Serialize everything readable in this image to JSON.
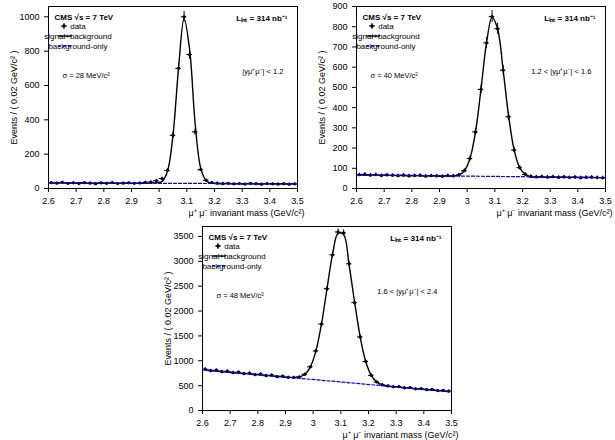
{
  "chart_data": [
    {
      "type": "scatter",
      "annotations": [
        "CMS √s = 7 TeV",
        "Lᵢₙₜ = 314 nb⁻¹",
        "|yμ⁺μ⁻| < 1.2",
        "σ = 28 MeV/c²"
      ],
      "x_label": "μ⁺ μ⁻ invariant mass (GeV/c²)",
      "y_label": "Events / ( 0.02 GeV/c² )",
      "xlim": [
        2.6,
        3.5
      ],
      "ylim": [
        0,
        1060
      ],
      "xticks": [
        2.6,
        2.7,
        2.8,
        2.9,
        3,
        3.1,
        3.2,
        3.3,
        3.4,
        3.5
      ],
      "yticks": [
        0,
        200,
        400,
        600,
        800,
        1000
      ],
      "grid": false,
      "legend": "top-left",
      "x": [
        2.61,
        2.63,
        2.65,
        2.67,
        2.69,
        2.71,
        2.73,
        2.75,
        2.77,
        2.79,
        2.81,
        2.83,
        2.85,
        2.87,
        2.89,
        2.91,
        2.93,
        2.95,
        2.97,
        2.99,
        3.01,
        3.03,
        3.05,
        3.07,
        3.09,
        3.11,
        3.13,
        3.15,
        3.17,
        3.19,
        3.21,
        3.23,
        3.25,
        3.27,
        3.29,
        3.31,
        3.33,
        3.35,
        3.37,
        3.39,
        3.41,
        3.43,
        3.45,
        3.47,
        3.49
      ],
      "series": [
        {
          "name": "data",
          "type": "scatter",
          "marker": "circle",
          "color": "#000000",
          "values": [
            34,
            31,
            36,
            30,
            33,
            29,
            34,
            31,
            28,
            33,
            30,
            35,
            29,
            31,
            33,
            30,
            32,
            36,
            38,
            45,
            58,
            105,
            310,
            700,
            1000,
            780,
            330,
            110,
            48,
            35,
            31,
            28,
            30,
            27,
            29,
            26,
            30,
            28,
            25,
            29,
            27,
            26,
            28,
            25,
            27
          ],
          "errors": [
            6,
            6,
            6,
            5,
            6,
            5,
            6,
            6,
            5,
            6,
            5,
            6,
            5,
            6,
            6,
            5,
            6,
            6,
            6,
            7,
            8,
            10,
            18,
            26,
            32,
            28,
            18,
            10,
            7,
            6,
            6,
            5,
            5,
            5,
            5,
            5,
            5,
            5,
            5,
            5,
            5,
            5,
            5,
            5,
            5
          ]
        },
        {
          "name": "signal+background",
          "type": "line",
          "line_style": "solid",
          "color": "#000000",
          "values": [
            33,
            33,
            33,
            32,
            32,
            32,
            32,
            31,
            31,
            31,
            31,
            31,
            30,
            30,
            30,
            30,
            30,
            30,
            32,
            34,
            40,
            100,
            312,
            700,
            990,
            810,
            380,
            120,
            45,
            31,
            29,
            29,
            29,
            28,
            28,
            28,
            28,
            28,
            27,
            27,
            27,
            27,
            27,
            27,
            27
          ]
        },
        {
          "name": "background-only",
          "type": "line",
          "line_style": "dashed",
          "color": "#0000ff",
          "x": [
            2.6,
            3.5
          ],
          "values": [
            33,
            27
          ]
        }
      ]
    },
    {
      "type": "scatter",
      "annotations": [
        "CMS √s = 7 TeV",
        "Lᵢₙₜ = 314 nb⁻¹",
        "1.2 < |yμ⁺μ⁻| < 1.6",
        "σ = 40 MeV/c²"
      ],
      "x_label": "μ⁺ μ⁻ invariant mass (GeV/c²)",
      "y_label": "Events / ( 0.02 GeV/c² )",
      "xlim": [
        2.6,
        3.5
      ],
      "ylim": [
        0,
        900
      ],
      "xticks": [
        2.6,
        2.7,
        2.8,
        2.9,
        3,
        3.1,
        3.2,
        3.3,
        3.4,
        3.5
      ],
      "yticks": [
        0,
        100,
        200,
        300,
        400,
        500,
        600,
        700,
        800,
        900
      ],
      "grid": false,
      "legend": "top-left",
      "x": [
        2.61,
        2.63,
        2.65,
        2.67,
        2.69,
        2.71,
        2.73,
        2.75,
        2.77,
        2.79,
        2.81,
        2.83,
        2.85,
        2.87,
        2.89,
        2.91,
        2.93,
        2.95,
        2.97,
        2.99,
        3.01,
        3.03,
        3.05,
        3.07,
        3.09,
        3.11,
        3.13,
        3.15,
        3.17,
        3.19,
        3.21,
        3.23,
        3.25,
        3.27,
        3.29,
        3.31,
        3.33,
        3.35,
        3.37,
        3.39,
        3.41,
        3.43,
        3.45,
        3.47,
        3.49
      ],
      "series": [
        {
          "name": "data",
          "type": "scatter",
          "marker": "circle",
          "color": "#000000",
          "values": [
            68,
            70,
            66,
            69,
            64,
            67,
            65,
            63,
            66,
            62,
            64,
            65,
            61,
            63,
            62,
            60,
            64,
            62,
            67,
            88,
            148,
            280,
            490,
            720,
            850,
            790,
            585,
            355,
            190,
            103,
            70,
            60,
            57,
            59,
            56,
            58,
            55,
            57,
            54,
            56,
            53,
            55,
            56,
            54,
            53
          ],
          "errors": [
            8,
            8,
            8,
            8,
            8,
            8,
            8,
            8,
            8,
            8,
            8,
            8,
            8,
            8,
            8,
            8,
            8,
            8,
            8,
            9,
            12,
            17,
            22,
            27,
            29,
            28,
            24,
            19,
            14,
            10,
            8,
            8,
            8,
            8,
            8,
            8,
            8,
            8,
            8,
            8,
            8,
            8,
            8,
            8,
            8
          ]
        },
        {
          "name": "signal+background",
          "type": "line",
          "line_style": "solid",
          "color": "#000000",
          "values": [
            67,
            67,
            66,
            66,
            66,
            65,
            65,
            65,
            64,
            64,
            64,
            63,
            63,
            63,
            62,
            62,
            62,
            61,
            67,
            88,
            147,
            279,
            491,
            720,
            846,
            789,
            586,
            356,
            189,
            102,
            71,
            57,
            57,
            57,
            56,
            56,
            56,
            55,
            55,
            55,
            55,
            54,
            54,
            54,
            54
          ]
        },
        {
          "name": "background-only",
          "type": "line",
          "line_style": "dashed",
          "color": "#0000ff",
          "x": [
            2.6,
            3.5
          ],
          "values": [
            67,
            54
          ]
        }
      ]
    },
    {
      "type": "scatter",
      "annotations": [
        "CMS √s = 7 TeV",
        "Lᵢₙₜ = 314 nb⁻¹",
        "1.6 < |yμ⁺μ⁻| < 2.4",
        "σ = 48 MeV/c²"
      ],
      "x_label": "μ⁺ μ⁻ invariant mass (GeV/c²)",
      "y_label": "Events / ( 0.02 GeV/c² )",
      "xlim": [
        2.6,
        3.5
      ],
      "ylim": [
        0,
        3700
      ],
      "xticks": [
        2.6,
        2.7,
        2.8,
        2.9,
        3,
        3.1,
        3.2,
        3.3,
        3.4,
        3.5
      ],
      "yticks": [
        0,
        500,
        1000,
        1500,
        2000,
        2500,
        3000,
        3500
      ],
      "grid": false,
      "legend": "top-left",
      "x": [
        2.61,
        2.63,
        2.65,
        2.67,
        2.69,
        2.71,
        2.73,
        2.75,
        2.77,
        2.79,
        2.81,
        2.83,
        2.85,
        2.87,
        2.89,
        2.91,
        2.93,
        2.95,
        2.97,
        2.99,
        3.01,
        3.03,
        3.05,
        3.07,
        3.09,
        3.11,
        3.13,
        3.15,
        3.17,
        3.19,
        3.21,
        3.23,
        3.25,
        3.27,
        3.29,
        3.31,
        3.33,
        3.35,
        3.37,
        3.39,
        3.41,
        3.43,
        3.45,
        3.47,
        3.49
      ],
      "series": [
        {
          "name": "data",
          "type": "scatter",
          "marker": "circle",
          "color": "#000000",
          "values": [
            830,
            800,
            810,
            780,
            790,
            760,
            770,
            740,
            750,
            720,
            730,
            700,
            710,
            680,
            690,
            665,
            664,
            674,
            728,
            878,
            1198,
            1738,
            2448,
            3130,
            3590,
            3570,
            2950,
            2169,
            1479,
            986,
            707,
            573,
            518,
            495,
            478,
            482,
            455,
            462,
            435,
            440,
            418,
            425,
            400,
            405,
            390
          ],
          "errors": [
            29,
            28,
            28,
            28,
            28,
            28,
            28,
            27,
            27,
            27,
            27,
            26,
            27,
            26,
            26,
            26,
            26,
            26,
            27,
            30,
            35,
            42,
            49,
            56,
            60,
            60,
            54,
            47,
            38,
            31,
            27,
            24,
            23,
            22,
            22,
            22,
            21,
            21,
            21,
            21,
            20,
            21,
            20,
            20,
            20
          ]
        },
        {
          "name": "signal+background",
          "type": "line",
          "line_style": "solid",
          "color": "#000000",
          "values": [
            815,
            805,
            795,
            785,
            775,
            765,
            755,
            746,
            736,
            726,
            716,
            706,
            696,
            687,
            677,
            667,
            664,
            674,
            728,
            878,
            1198,
            1738,
            2448,
            3138,
            3560,
            3540,
            2919,
            2169,
            1479,
            986,
            707,
            573,
            518,
            490,
            480,
            470,
            460,
            450,
            440,
            431,
            421,
            411,
            401,
            391,
            381
          ]
        },
        {
          "name": "background-only",
          "type": "line",
          "line_style": "dashed",
          "color": "#0000ff",
          "x": [
            2.6,
            3.5
          ],
          "values": [
            820,
            376
          ]
        }
      ]
    }
  ]
}
